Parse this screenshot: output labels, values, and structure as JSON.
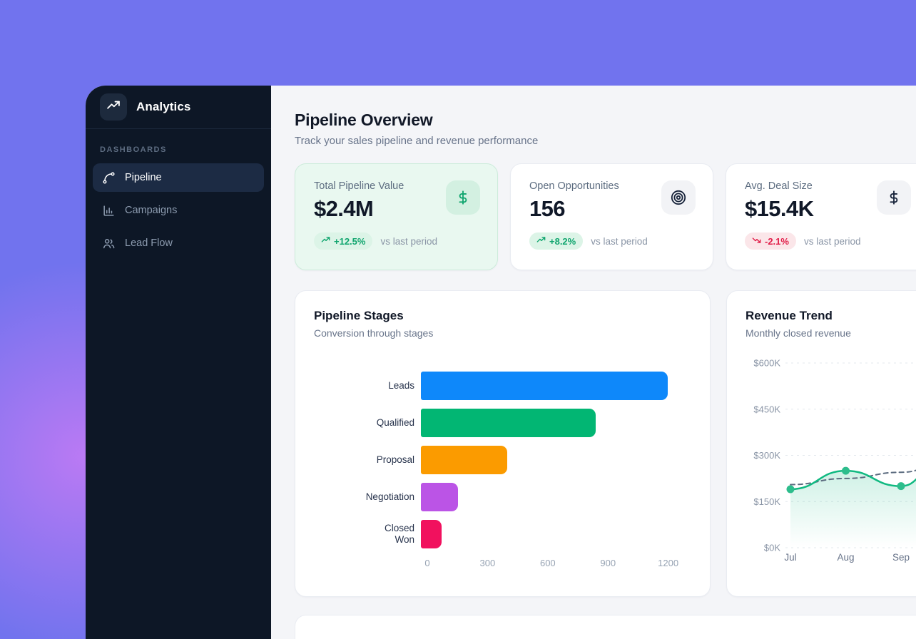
{
  "app": {
    "brand": "Analytics",
    "section_label": "DASHBOARDS",
    "nav": [
      {
        "label": "Pipeline",
        "icon": "spline-icon",
        "active": true
      },
      {
        "label": "Campaigns",
        "icon": "bar-chart-icon",
        "active": false
      },
      {
        "label": "Lead Flow",
        "icon": "users-icon",
        "active": false
      }
    ]
  },
  "header": {
    "title": "Pipeline Overview",
    "subtitle": "Track your sales pipeline and revenue performance"
  },
  "kpis": [
    {
      "label": "Total Pipeline Value",
      "value": "$2.4M",
      "delta": "+12.5%",
      "delta_direction": "up",
      "compare": "vs last period",
      "icon": "dollar-icon",
      "accent": true
    },
    {
      "label": "Open Opportunities",
      "value": "156",
      "delta": "+8.2%",
      "delta_direction": "up",
      "compare": "vs last period",
      "icon": "target-icon",
      "accent": false
    },
    {
      "label": "Avg. Deal Size",
      "value": "$15.4K",
      "delta": "-2.1%",
      "delta_direction": "down",
      "compare": "vs last period",
      "icon": "dollar-icon",
      "accent": false
    }
  ],
  "colors": {
    "background": "#7173ee",
    "background_glow": "#be7af4",
    "sidebar": "#0d1726",
    "sidebar_active": "#1c2b44",
    "main_bg": "#f4f5f8",
    "accent_card_bg": "#e9f8f0",
    "positive": "#10a56e",
    "negative": "#e11d48"
  },
  "chart_data": [
    {
      "type": "bar",
      "orientation": "horizontal",
      "title": "Pipeline Stages",
      "subtitle": "Conversion through stages",
      "categories": [
        "Leads",
        "Qualified",
        "Proposal",
        "Negotiation",
        "Closed Won"
      ],
      "values": [
        1200,
        850,
        420,
        180,
        100
      ],
      "bar_colors": [
        "#0e88fa",
        "#02b673",
        "#fb9b00",
        "#bb54e6",
        "#f1115e"
      ],
      "xticks": [
        0,
        300,
        600,
        900,
        1200
      ],
      "xlim": [
        0,
        1315
      ],
      "grid": false,
      "legend": false
    },
    {
      "type": "line",
      "title": "Revenue Trend",
      "subtitle": "Monthly closed revenue",
      "x": [
        "Jul",
        "Aug",
        "Sep"
      ],
      "series": [
        {
          "name": "revenue",
          "values": [
            190,
            250,
            200
          ],
          "color": "#10b981",
          "style": "solid",
          "points": true,
          "area": true
        },
        {
          "name": "target",
          "values": [
            205,
            225,
            245
          ],
          "color": "#5b6b7f",
          "style": "dashed",
          "points": false,
          "area": false
        }
      ],
      "edge_values": {
        "revenue": 252,
        "target": 260
      },
      "ytick_values": [
        0,
        150,
        300,
        450,
        600
      ],
      "ytick_labels": [
        "$0K",
        "$150K",
        "$300K",
        "$450K",
        "$600K"
      ],
      "ylim": [
        0,
        600
      ],
      "grid": "dashed-horizontal",
      "legend": false,
      "clipped_right": true
    }
  ]
}
